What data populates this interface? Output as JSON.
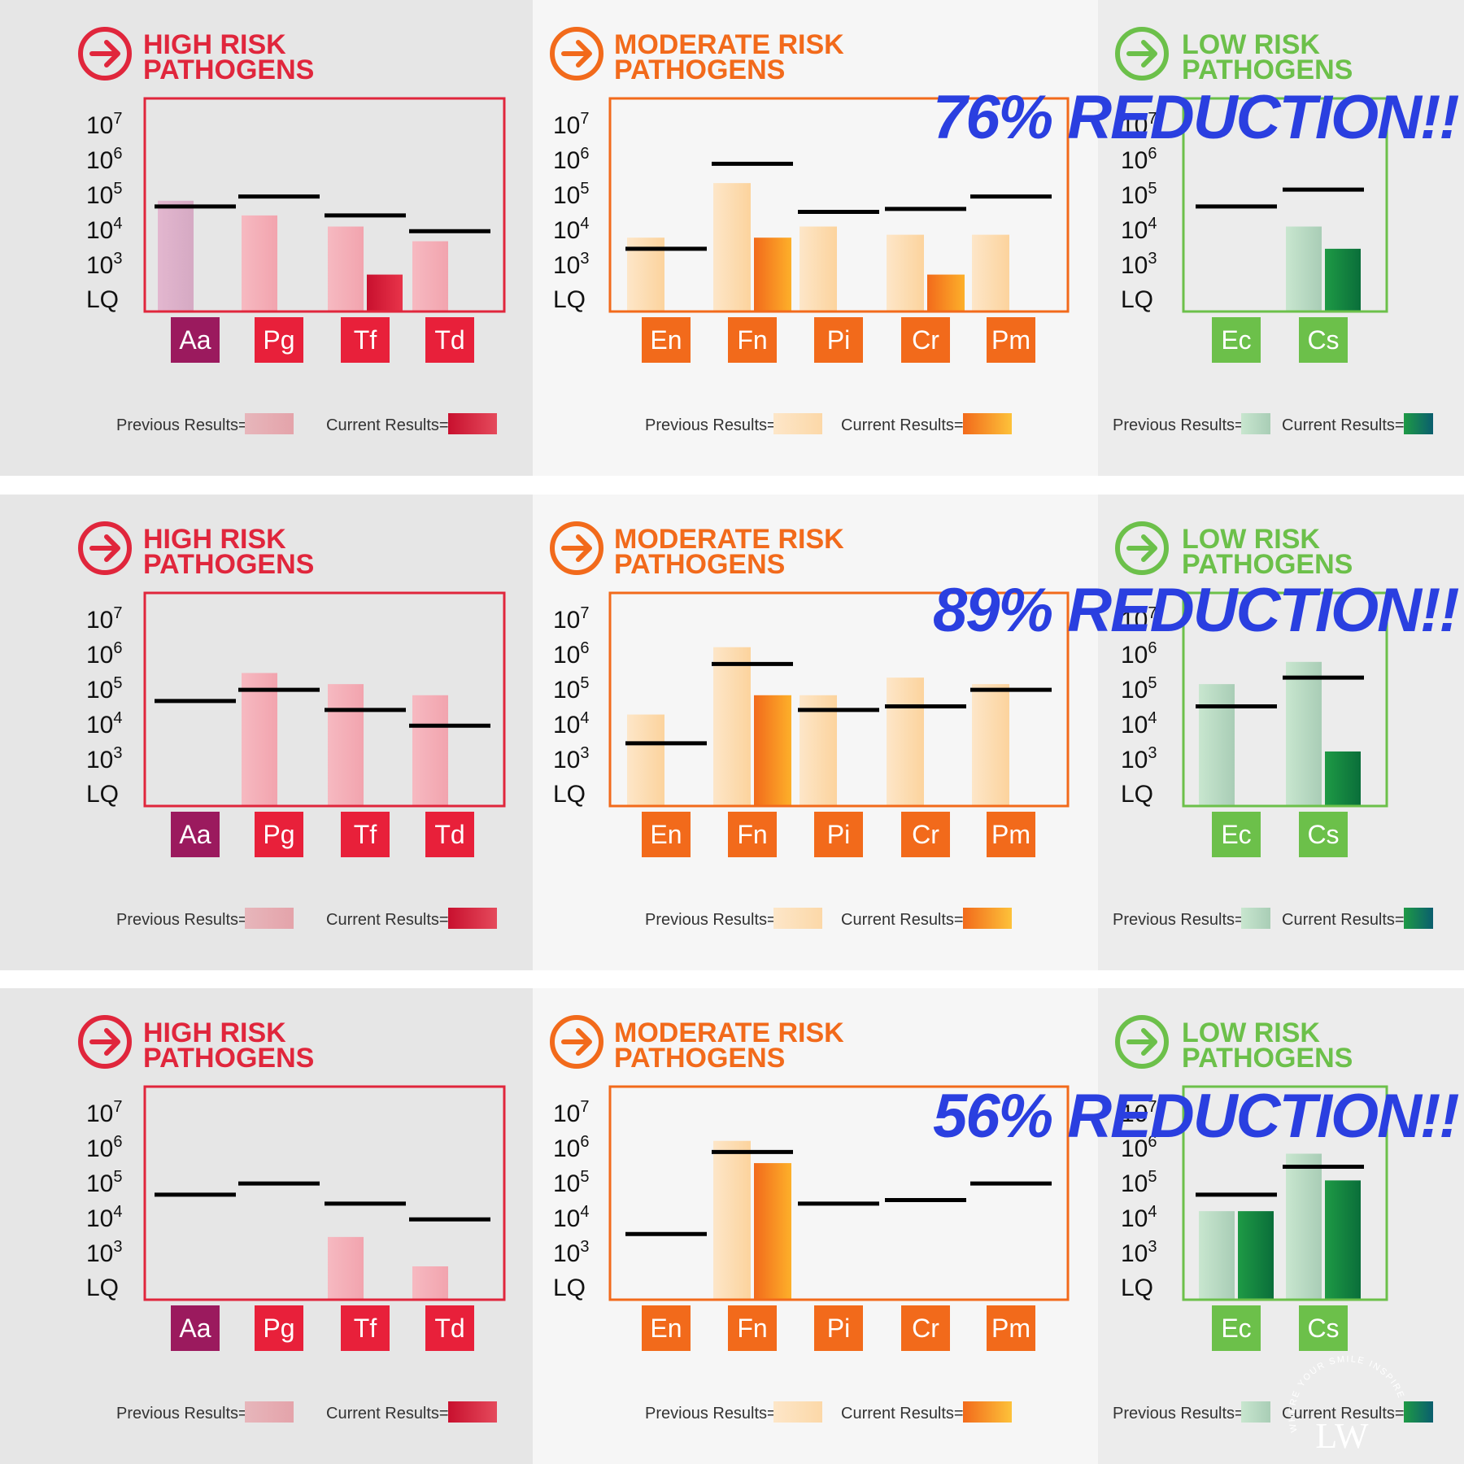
{
  "axis_ticks": [
    "LQ",
    "10",
    "10",
    "10",
    "10",
    "10"
  ],
  "axis_tick_exponents": [
    "",
    "3",
    "4",
    "5",
    "6",
    "7"
  ],
  "legend": {
    "previous": "Previous Results=",
    "current": "Current Results="
  },
  "panel_titles": {
    "high": [
      "HIGH RISK",
      "PATHOGENS"
    ],
    "moderate": [
      "MODERATE RISK",
      "PATHOGENS"
    ],
    "low": [
      "LOW RISK",
      "PATHOGENS"
    ]
  },
  "colors": {
    "high": "#e0263c",
    "moderate": "#f26a1b",
    "low": "#6cc04a",
    "overlay": "#2a3fe0",
    "threshold": "#000000",
    "high_bg": "#e6e6e6",
    "moderate_bg": "#f6f6f6",
    "low_bg": "#ececec"
  },
  "row_headlines": [
    "76% REDUCTION!!",
    "89% REDUCTION!!",
    "56% REDUCTION!!"
  ],
  "watermark": {
    "text": "WHERE YOUR SMILE INSPIRES",
    "mark": "LW"
  },
  "chart_data": [
    {
      "type": "bar",
      "row": 1,
      "panel": "high",
      "y_scale": "log",
      "y_range": [
        "LQ",
        "10^7"
      ],
      "categories": [
        "Aa",
        "Pg",
        "Tf",
        "Td"
      ],
      "category_colors": [
        "#9b1a5e",
        "#e8203a",
        "#e8203a",
        "#e8203a"
      ],
      "previous": [
        100000,
        40000,
        20000,
        8000
      ],
      "current": [
        null,
        null,
        1000,
        null
      ],
      "threshold": [
        70000,
        130000,
        40000,
        15000
      ]
    },
    {
      "type": "bar",
      "row": 1,
      "panel": "moderate",
      "y_scale": "log",
      "y_range": [
        "LQ",
        "10^7"
      ],
      "categories": [
        "En",
        "Fn",
        "Pi",
        "Cr",
        "Pm"
      ],
      "category_colors": [
        "#f26a1b",
        "#f26a1b",
        "#f26a1b",
        "#f26a1b",
        "#f26a1b"
      ],
      "previous": [
        10000,
        300000,
        20000,
        12000,
        12000
      ],
      "current": [
        null,
        10000,
        null,
        1000,
        null
      ],
      "threshold": [
        5000,
        1000000,
        50000,
        60000,
        130000
      ]
    },
    {
      "type": "bar",
      "row": 1,
      "panel": "low",
      "y_scale": "log",
      "y_range": [
        "LQ",
        "10^7"
      ],
      "categories": [
        "Ec",
        "Cs"
      ],
      "category_colors": [
        "#6cc04a",
        "#6cc04a"
      ],
      "previous": [
        null,
        20000
      ],
      "current": [
        null,
        5000
      ],
      "threshold": [
        70000,
        200000
      ]
    },
    {
      "type": "bar",
      "row": 2,
      "panel": "high",
      "y_scale": "log",
      "y_range": [
        "LQ",
        "10^7"
      ],
      "categories": [
        "Aa",
        "Pg",
        "Tf",
        "Td"
      ],
      "category_colors": [
        "#9b1a5e",
        "#e8203a",
        "#e8203a",
        "#e8203a"
      ],
      "previous": [
        null,
        400000,
        200000,
        100000
      ],
      "current": [
        null,
        null,
        null,
        null
      ],
      "threshold": [
        70000,
        140000,
        40000,
        15000
      ]
    },
    {
      "type": "bar",
      "row": 2,
      "panel": "moderate",
      "y_scale": "log",
      "y_range": [
        "LQ",
        "10^7"
      ],
      "categories": [
        "En",
        "Fn",
        "Pi",
        "Cr",
        "Pm"
      ],
      "category_colors": [
        "#f26a1b",
        "#f26a1b",
        "#f26a1b",
        "#f26a1b",
        "#f26a1b"
      ],
      "previous": [
        30000,
        2000000,
        100000,
        300000,
        200000
      ],
      "current": [
        null,
        100000,
        null,
        null,
        null
      ],
      "threshold": [
        5000,
        700000,
        40000,
        50000,
        140000
      ]
    },
    {
      "type": "bar",
      "row": 2,
      "panel": "low",
      "y_scale": "log",
      "y_range": [
        "LQ",
        "10^7"
      ],
      "categories": [
        "Ec",
        "Cs"
      ],
      "category_colors": [
        "#6cc04a",
        "#6cc04a"
      ],
      "previous": [
        200000,
        800000
      ],
      "current": [
        null,
        3000
      ],
      "threshold": [
        50000,
        300000
      ]
    },
    {
      "type": "bar",
      "row": 3,
      "panel": "high",
      "y_scale": "log",
      "y_range": [
        "LQ",
        "10^7"
      ],
      "categories": [
        "Aa",
        "Pg",
        "Tf",
        "Td"
      ],
      "category_colors": [
        "#9b1a5e",
        "#e8203a",
        "#e8203a",
        "#e8203a"
      ],
      "previous": [
        null,
        null,
        5000,
        800
      ],
      "current": [
        null,
        null,
        null,
        null
      ],
      "threshold": [
        70000,
        140000,
        40000,
        15000
      ]
    },
    {
      "type": "bar",
      "row": 3,
      "panel": "moderate",
      "y_scale": "log",
      "y_range": [
        "LQ",
        "10^7"
      ],
      "categories": [
        "En",
        "Fn",
        "Pi",
        "Cr",
        "Pm"
      ],
      "category_colors": [
        "#f26a1b",
        "#f26a1b",
        "#f26a1b",
        "#f26a1b",
        "#f26a1b"
      ],
      "previous": [
        null,
        2000000,
        null,
        null,
        null
      ],
      "current": [
        null,
        500000,
        null,
        null,
        null
      ],
      "threshold": [
        6000,
        1000000,
        40000,
        50000,
        140000
      ]
    },
    {
      "type": "bar",
      "row": 3,
      "panel": "low",
      "y_scale": "log",
      "y_range": [
        "LQ",
        "10^7"
      ],
      "categories": [
        "Ec",
        "Cs"
      ],
      "category_colors": [
        "#6cc04a",
        "#6cc04a"
      ],
      "previous": [
        25000,
        900000
      ],
      "current": [
        25000,
        170000
      ],
      "threshold": [
        70000,
        400000
      ]
    }
  ]
}
